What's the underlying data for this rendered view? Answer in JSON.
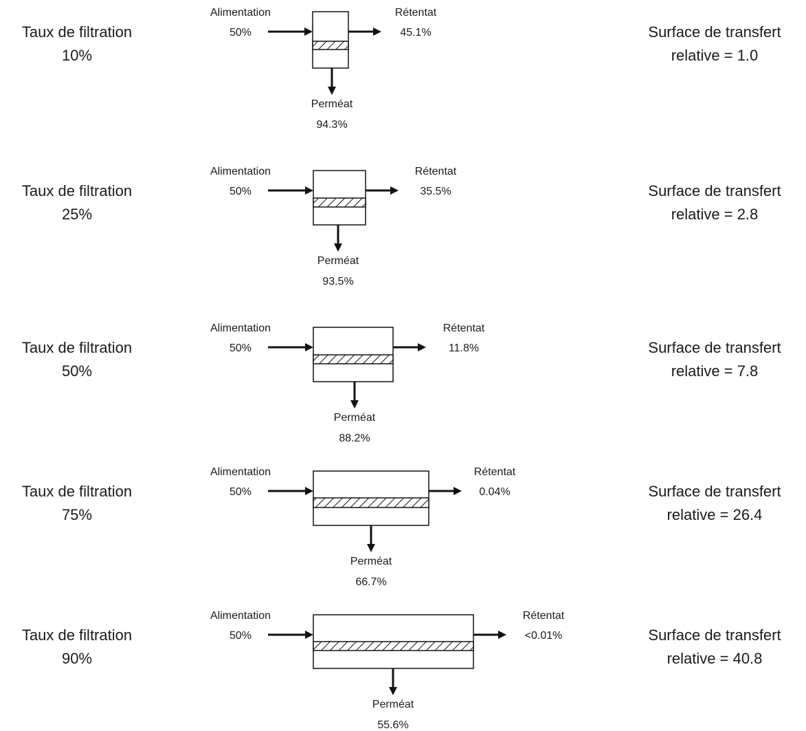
{
  "colors": {
    "ink": "#111111",
    "text": "#1a1a1a",
    "background": "#ffffff"
  },
  "stages": [
    {
      "rate_label": "Taux de filtration",
      "rate_value": "10%",
      "feed_label": "Alimentation",
      "feed_value": "50%",
      "retentate_label": "Rétentat",
      "retentate_value": "45.1%",
      "permeate_label": "Perméat",
      "permeate_value": "94.3%",
      "surface_label": "Surface de transfert",
      "surface_value": "relative = 1.0"
    },
    {
      "rate_label": "Taux de filtration",
      "rate_value": "25%",
      "feed_label": "Alimentation",
      "feed_value": "50%",
      "retentate_label": "Rétentat",
      "retentate_value": "35.5%",
      "permeate_label": "Perméat",
      "permeate_value": "93.5%",
      "surface_label": "Surface de transfert",
      "surface_value": "relative = 2.8"
    },
    {
      "rate_label": "Taux de filtration",
      "rate_value": "50%",
      "feed_label": "Alimentation",
      "feed_value": "50%",
      "retentate_label": "Rétentat",
      "retentate_value": "11.8%",
      "permeate_label": "Perméat",
      "permeate_value": "88.2%",
      "surface_label": "Surface de transfert",
      "surface_value": "relative = 7.8"
    },
    {
      "rate_label": "Taux de filtration",
      "rate_value": "75%",
      "feed_label": "Alimentation",
      "feed_value": "50%",
      "retentate_label": "Rétentat",
      "retentate_value": "0.04%",
      "permeate_label": "Perméat",
      "permeate_value": "66.7%",
      "surface_label": "Surface de transfert",
      "surface_value": "relative = 26.4"
    },
    {
      "rate_label": "Taux de filtration",
      "rate_value": "90%",
      "feed_label": "Alimentation",
      "feed_value": "50%",
      "retentate_label": "Rétentat",
      "retentate_value": "<0.01%",
      "permeate_label": "Perméat",
      "permeate_value": "55.6%",
      "surface_label": "Surface de transfert",
      "surface_value": "relative = 40.8"
    }
  ]
}
